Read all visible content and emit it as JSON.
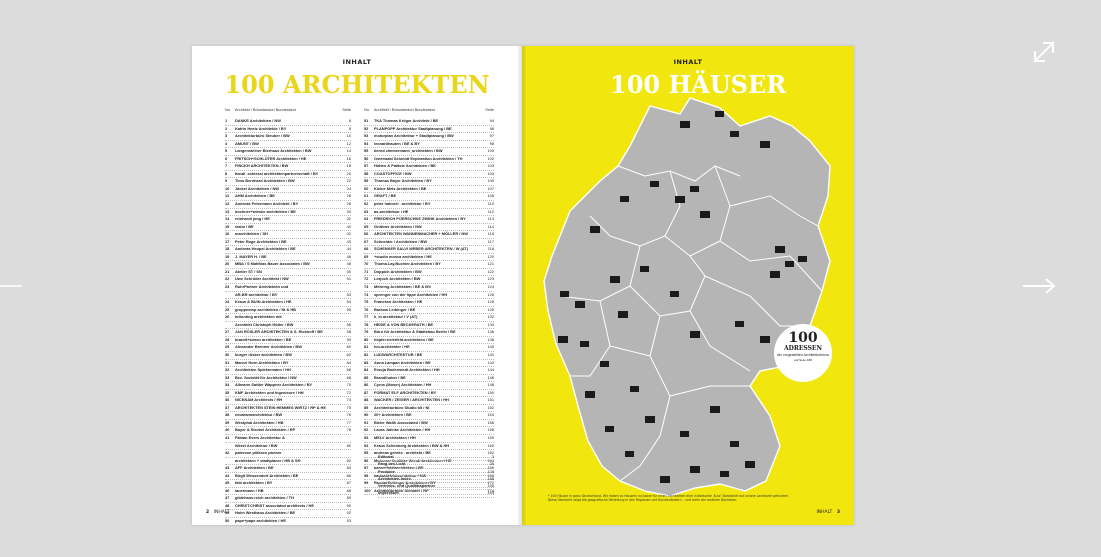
{
  "viewer": {
    "fullscreen_icon": "expand-diagonal-icon",
    "next_icon": "arrow-right-icon",
    "prev_icon": "arrow-left-icon"
  },
  "left_page": {
    "kicker": "INHALT",
    "title": "100 ARCHITEKTEN",
    "col_no": "No.",
    "col_name": "Architekt / Bürostandort Bundesland",
    "col_page": "Seite",
    "folio": "2",
    "folio_label": "INHALT",
    "list_a": [
      {
        "no": "1",
        "name": "DANKE Architekten / NW",
        "page": "6"
      },
      {
        "no": "2",
        "name": "Katrin Heetz Architekte / BY",
        "page": "8"
      },
      {
        "no": "3",
        "name": "Architekturbüro Steuber / BW",
        "page": "10"
      },
      {
        "no": "4",
        "name": "AMUNT / BW",
        "page": "12"
      },
      {
        "no": "5",
        "name": "Langensteiner Bierhaus Architekten / BW",
        "page": "14"
      },
      {
        "no": "6",
        "name": "FRITSCH+SCHLÜTER Architekten / HE",
        "page": "16"
      },
      {
        "no": "7",
        "name": "FINCKH ARCHITEKTEN / BW",
        "page": "18"
      },
      {
        "no": "8",
        "name": "tiandl .schiessl architektenpartnerschaft / BY",
        "page": "20"
      },
      {
        "no": "9",
        "name": "Timo Bernhard Architekten / BW",
        "page": "22"
      },
      {
        "no": "10",
        "name": "Jäckel Architekten / NW",
        "page": "24"
      },
      {
        "no": "11",
        "name": "AHM Architekten / BE",
        "page": "26"
      },
      {
        "no": "12",
        "name": "Andreas Petermann Architekt / BY",
        "page": "28"
      },
      {
        "no": "13",
        "name": "bochner+wieske architekten / BE",
        "page": "30"
      },
      {
        "no": "14",
        "name": "reinhardt jung / HE",
        "page": "32"
      },
      {
        "no": "15",
        "name": "claim / BE",
        "page": "40"
      },
      {
        "no": "16",
        "name": "marchitekten / SH",
        "page": "42"
      },
      {
        "no": "17",
        "name": "Peter Ruge Architekten / BE",
        "page": "43"
      },
      {
        "no": "18",
        "name": "Andreas Heupel Architekten / BE",
        "page": "44"
      },
      {
        "no": "19",
        "name": "J. MAYER H. / BE",
        "page": "46"
      },
      {
        "no": "20",
        "name": "MBA / S Matthias Bauer Associates / BW",
        "page": "48"
      },
      {
        "no": "21",
        "name": "Atelier ST / SN",
        "page": "50"
      },
      {
        "no": "22",
        "name": "Uwe Schröder Architekt / NW",
        "page": "51"
      },
      {
        "no": "23",
        "name": "RuhrPartner Architekten und",
        "page": ""
      },
      {
        "no": "",
        "name": "AR-BR architektur / BY",
        "page": "53"
      },
      {
        "no": "24",
        "name": "Kraus & BUIN Architekten / HE",
        "page": "54"
      },
      {
        "no": "25",
        "name": "gruppeomp architekten / NI & HB",
        "page": "55"
      },
      {
        "no": "26",
        "name": "brilunting architekten mit",
        "page": ""
      },
      {
        "no": "",
        "name": "Architekt Christoph Hölter / BW",
        "page": "56"
      },
      {
        "no": "27",
        "name": "JAN RÖSLER ARCHITEKTEN & S. Rickhoff / BE",
        "page": "58"
      },
      {
        "no": "28",
        "name": "brandt+simon architekten / BE",
        "page": "59"
      },
      {
        "no": "29",
        "name": "Alexander Brenner Architekten / BW",
        "page": "60"
      },
      {
        "no": "30",
        "name": "burger rüsker architekten / BW",
        "page": "62"
      },
      {
        "no": "31",
        "name": "Marcel Horn Architekten / BY",
        "page": "64"
      },
      {
        "no": "32",
        "name": "Architekten Spiekermann / HH",
        "page": "66"
      },
      {
        "no": "33",
        "name": "Bez. Sozietät für Architektur / NW",
        "page": "68"
      },
      {
        "no": "34",
        "name": "Allmann Sattler Wappner Architekten / BY",
        "page": "70"
      },
      {
        "no": "35",
        "name": "KMF Architekten und Ingenieure / HH",
        "page": "72"
      },
      {
        "no": "36",
        "name": "NICKNAM Architects / HH",
        "page": "74"
      },
      {
        "no": "37",
        "name": "ARCHITEKTEN STEIN HEMMES WIRTZ / RP & HE",
        "page": "75"
      },
      {
        "no": "38",
        "name": "neumannarchitektur / BW",
        "page": "76"
      },
      {
        "no": "39",
        "name": "Westphal Architekten / HB",
        "page": "77"
      },
      {
        "no": "40",
        "name": "Bayer & Strobel Architekten / RP",
        "page": "78"
      },
      {
        "no": "41",
        "name": "Fabian Evers Architektur &",
        "page": ""
      },
      {
        "no": "",
        "name": "Wezel Architektur / BW",
        "page": "80"
      },
      {
        "no": "42",
        "name": "paterson pölksen partner",
        "page": ""
      },
      {
        "no": "",
        "name": "architekten + stadtplaner / HB & SH",
        "page": "82"
      },
      {
        "no": "43",
        "name": "AFF Architekten / BE",
        "page": "84"
      },
      {
        "no": "44",
        "name": "Birgit Wessendorf Architektin / BE",
        "page": "86"
      },
      {
        "no": "45",
        "name": "fabi architekten / BY",
        "page": "87"
      },
      {
        "no": "46",
        "name": "lauermann / HB",
        "page": "88"
      },
      {
        "no": "47",
        "name": "gildehaus.reich architekten / TH",
        "page": "89"
      },
      {
        "no": "48",
        "name": "CHRIST.CHRIST associated architects / HE",
        "page": "90"
      },
      {
        "no": "49",
        "name": "Holm Westhaus Architekten / BE",
        "page": "92"
      },
      {
        "no": "50",
        "name": "pape+pape architekten / HE",
        "page": "93"
      }
    ],
    "list_b": [
      {
        "no": "51",
        "name": "TKA Thomas Kröger Architekt / BE",
        "page": "94"
      },
      {
        "no": "52",
        "name": "PLANPOPP Architektur Stadtplanung / BE",
        "page": "96"
      },
      {
        "no": "53",
        "name": "motorplan Architektur + Stadtplanung / BW",
        "page": "97"
      },
      {
        "no": "54",
        "name": "leonardhauten / BE & BY",
        "page": "98"
      },
      {
        "no": "55",
        "name": "bernd zimmermann_architekten / BW",
        "page": "100"
      },
      {
        "no": "56",
        "name": "Osterwald Schmidt Exploration Architekten / TH",
        "page": "102"
      },
      {
        "no": "57",
        "name": "Hütten & Paläste Architekten / BE",
        "page": "103"
      },
      {
        "no": "58",
        "name": "COASTOFFICE / BW",
        "page": "104"
      },
      {
        "no": "59",
        "name": "Thomas Bayer Architekten / BY",
        "page": "105"
      },
      {
        "no": "60",
        "name": "Kleine Metz Architekten / BE",
        "page": "107"
      },
      {
        "no": "61",
        "name": "GRAFT / BE",
        "page": "108"
      },
      {
        "no": "62",
        "name": "peter haimerl . architektur / BY",
        "page": "110"
      },
      {
        "no": "63",
        "name": "as-architektur / HE",
        "page": "112"
      },
      {
        "no": "64",
        "name": "FRIEDRICH POERSCHKE ZWINK Architekten / BY",
        "page": "113"
      },
      {
        "no": "65",
        "name": "Grüttner Architekten / NW",
        "page": "114"
      },
      {
        "no": "66",
        "name": "ARCHITEKTEN WANNENMACHER + MÖLLER / NW",
        "page": "115"
      },
      {
        "no": "67",
        "name": "Schneider / Architekten / BW",
        "page": "117"
      },
      {
        "no": "68",
        "name": "SCHENKER SALVI WEBER ARCHITEKTEN / W (AT)",
        "page": "118"
      },
      {
        "no": "69",
        "name": "+studio mosca architekten / HE",
        "page": "120"
      },
      {
        "no": "70",
        "name": "Thoma.Lay.Buchler.Architekten / BY",
        "page": "121"
      },
      {
        "no": "71",
        "name": "Doppich Architekten / BW",
        "page": "122"
      },
      {
        "no": "72",
        "name": "Lorjoch Architekten / BW",
        "page": "123"
      },
      {
        "no": "73",
        "name": "Möhring Architekten / BE & MV",
        "page": "124"
      },
      {
        "no": "74",
        "name": "sprenger von der lippe Architekten / HH",
        "page": "126"
      },
      {
        "no": "75",
        "name": "Francken Architekten / HE",
        "page": "128"
      },
      {
        "no": "76",
        "name": "Barkow Leibinger / BE",
        "page": "130"
      },
      {
        "no": "77",
        "name": "k_m architektur / V (AT)",
        "page": "132"
      },
      {
        "no": "78",
        "name": "HEIDE & VON BECKERATH / BE",
        "page": "134"
      },
      {
        "no": "79",
        "name": "Büro für Architektur & Städtebau Berlin / BE",
        "page": "136"
      },
      {
        "no": "80",
        "name": "höpfer.hertzfeld.architekten / BE",
        "page": "138"
      },
      {
        "no": "81",
        "name": "hm-architekter / HE",
        "page": "140"
      },
      {
        "no": "82",
        "name": "LUDWARCHITEKTUR / BE",
        "page": "141"
      },
      {
        "no": "83",
        "name": "Anna Lampan Architekten / BE",
        "page": "142"
      },
      {
        "no": "84",
        "name": "Ersoja Bodenstedt Architekten / HH",
        "page": "144"
      },
      {
        "no": "85",
        "name": "Brandlhuber / BE",
        "page": "146"
      },
      {
        "no": "86",
        "name": "Cyrus (Moser) Architekten / HH",
        "page": "148"
      },
      {
        "no": "87",
        "name": "FORMAT ELF ARCHITEKTEN / BY",
        "page": "150"
      },
      {
        "no": "88",
        "name": "WACKER / ZEIGER / ARCHITEKTEN / HH",
        "page": "151"
      },
      {
        "no": "89",
        "name": "Architekturbüro Studio b5 / NI",
        "page": "152"
      },
      {
        "no": "90",
        "name": "20+ Architekten / BE",
        "page": "154"
      },
      {
        "no": "91",
        "name": "Bieler Walth Associated / BW",
        "page": "156"
      },
      {
        "no": "92",
        "name": "Laura Jahnke Architekten / HH",
        "page": "158"
      },
      {
        "no": "93",
        "name": "MELV Architekten / HH",
        "page": "159"
      },
      {
        "no": "94",
        "name": "Kraus Schönberg Architekten / BW & HH",
        "page": "160"
      },
      {
        "no": "95",
        "name": "andreas gehrke . architekt / BE",
        "page": "162"
      },
      {
        "no": "96",
        "name": "Molzener Schlüter Wendt Architekten / HE",
        "page": "164"
      },
      {
        "no": "97",
        "name": "baaserfeldtarchitektur / BE",
        "page": "166"
      },
      {
        "no": "98",
        "name": "kadawittfeldarchitektur / NW",
        "page": "168"
      },
      {
        "no": "99",
        "name": "Randal Dellinger Architekten / BY",
        "page": "172"
      },
      {
        "no": "100",
        "name": "Architekturbüro Schoder / RP",
        "page": "174"
      }
    ],
    "extras": [
      {
        "name": "Editorial",
        "page": "3"
      },
      {
        "name": "Fang des Licht",
        "page": "26"
      },
      {
        "name": "Produkte",
        "page": "178"
      },
      {
        "name": "Architekten-Index",
        "page": "188"
      },
      {
        "name": "Vertriebs- und Qualitätspartner",
        "page": "190"
      },
      {
        "name": "Impressum",
        "page": "193"
      }
    ]
  },
  "right_page": {
    "kicker": "INHALT",
    "title": "100 HÄUSER",
    "badge_number": "100",
    "badge_label": "ADRESSEN",
    "badge_sub": "der vorgestellten Architekturbüros",
    "badge_sub2": "auf Seite 188",
    "footnote": "* 100 Häuser in ganz Deutschland. Wir haben zu Hausern inclusive für einen Architekten eine individuelle ‚Kurz‘-Steckbrief auf unsere Landkarte gefunden. Diese Übersicht zeigt die geografische Verteilung in den Regionen und Bundesländern – und mehr der anderen Nachbarn.",
    "folio": "3",
    "folio_label": "INHALT"
  },
  "colors": {
    "background": "#dcdcdc",
    "accent_yellow": "#f2e60f",
    "title_yellow": "#e9d51a",
    "map_gray": "#b5b5b5"
  }
}
